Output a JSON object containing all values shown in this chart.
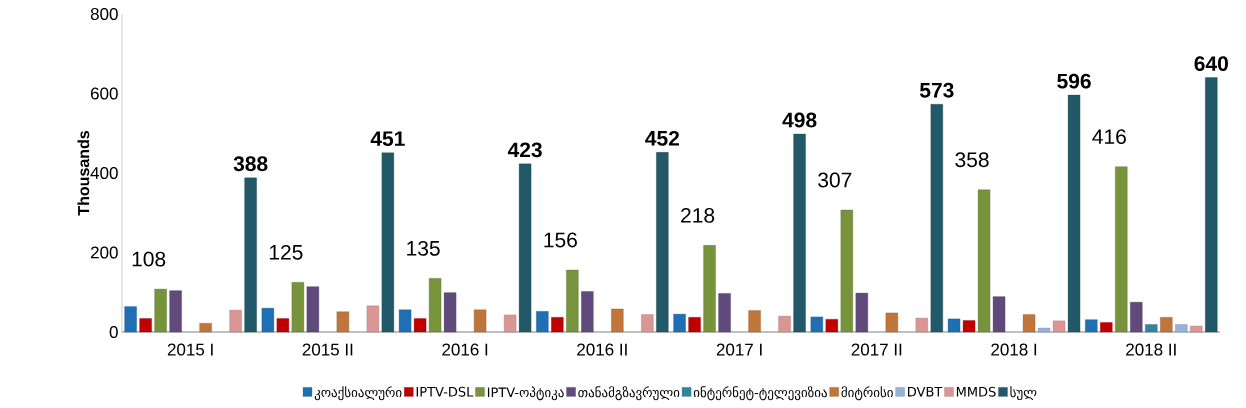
{
  "chart_data": {
    "type": "bar",
    "ylabel": "Thousands",
    "categories": [
      "2015 I",
      "2015 II",
      "2016 I",
      "2016 II",
      "2017 I",
      "2017 II",
      "2018 I",
      "2018 II"
    ],
    "ylim": [
      0,
      800
    ],
    "yticks": [
      0,
      200,
      400,
      600,
      800
    ],
    "grid": false,
    "legend": "bottom",
    "series": [
      {
        "name": "კოაქსიალური",
        "color": "#1f6fb5",
        "values": [
          64,
          60,
          56,
          52,
          45,
          38,
          33,
          31
        ]
      },
      {
        "name": "IPTV-DSL",
        "color": "#c00000",
        "values": [
          34,
          34,
          34,
          37,
          37,
          32,
          29,
          24
        ]
      },
      {
        "name": "IPTV-ოპტიკა",
        "color": "#77933c",
        "values": [
          108,
          125,
          135,
          156,
          218,
          307,
          358,
          416
        ],
        "value_labels": [
          "108",
          "125",
          "135",
          "156",
          "218",
          "307",
          "358",
          "416"
        ]
      },
      {
        "name": "თანამგზავრული",
        "color": "#604a7b",
        "values": [
          104,
          114,
          99,
          102,
          97,
          98,
          89,
          75
        ]
      },
      {
        "name": "ინტერნეტ-ტელევიზია",
        "color": "#31859c",
        "values": [
          null,
          null,
          null,
          null,
          null,
          null,
          null,
          19
        ]
      },
      {
        "name": "მიტრისი",
        "color": "#c0753a",
        "values": [
          22,
          51,
          56,
          58,
          54,
          48,
          44,
          37
        ]
      },
      {
        "name": "DVBT",
        "color": "#95b3d7",
        "values": [
          null,
          null,
          null,
          null,
          null,
          null,
          10,
          19
        ]
      },
      {
        "name": "MMDS",
        "color": "#d99694",
        "values": [
          55,
          66,
          43,
          44,
          40,
          35,
          28,
          15
        ]
      },
      {
        "name": "სულ",
        "color": "#215968",
        "values": [
          388,
          451,
          423,
          452,
          498,
          573,
          596,
          640
        ],
        "value_labels": [
          "388",
          "451",
          "423",
          "452",
          "498",
          "573",
          "596",
          "640"
        ]
      }
    ]
  }
}
